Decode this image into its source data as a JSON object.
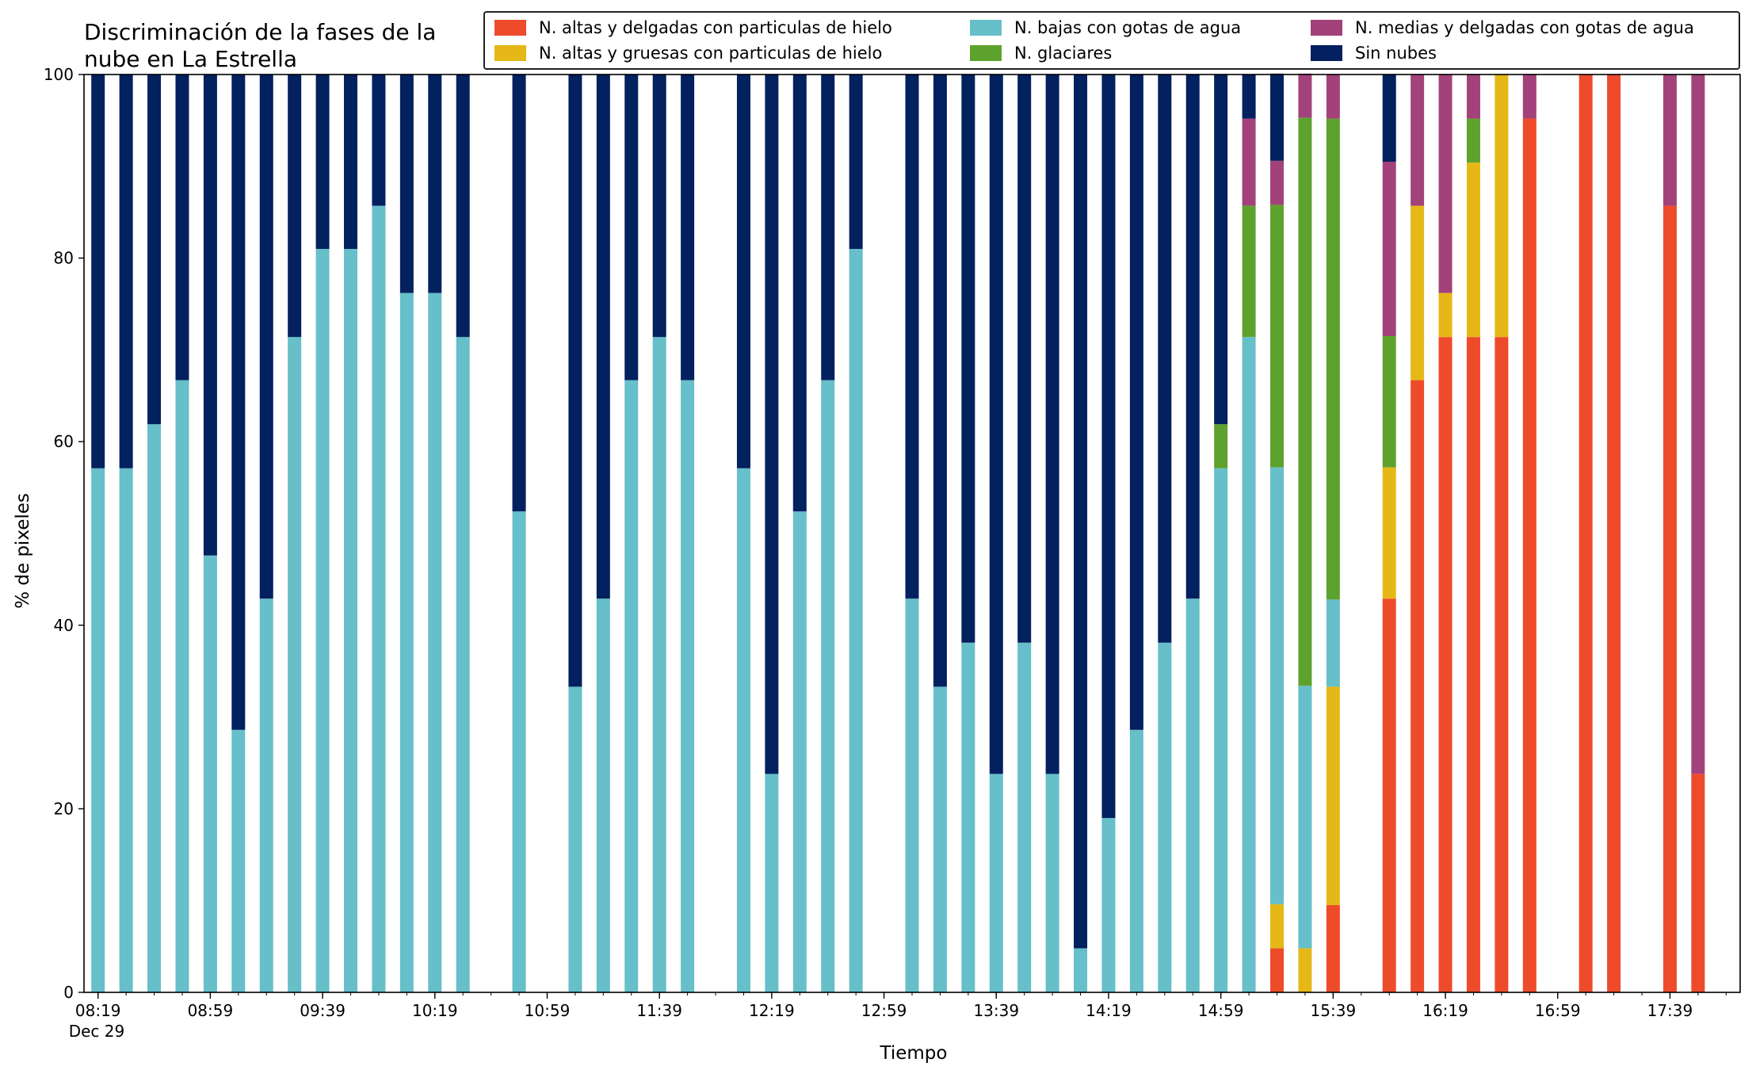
{
  "chart_data": {
    "type": "bar",
    "stacked": true,
    "title": "Discriminación de la fases de la\nnube en La Estrella",
    "xlabel": "Tiempo",
    "ylabel": "% de pixeles",
    "ylim": [
      0,
      100
    ],
    "yticks": [
      0,
      20,
      40,
      60,
      80,
      100
    ],
    "xlim": [
      "08:14",
      "18:04"
    ],
    "x_tick_labels": [
      {
        "t": "08:19",
        "label": "08:19",
        "sublabel": "Dec 29"
      },
      {
        "t": "08:59",
        "label": "08:59"
      },
      {
        "t": "09:39",
        "label": "09:39"
      },
      {
        "t": "10:19",
        "label": "10:19"
      },
      {
        "t": "10:59",
        "label": "10:59"
      },
      {
        "t": "11:39",
        "label": "11:39"
      },
      {
        "t": "12:19",
        "label": "12:19"
      },
      {
        "t": "12:59",
        "label": "12:59"
      },
      {
        "t": "13:39",
        "label": "13:39"
      },
      {
        "t": "14:19",
        "label": "14:19"
      },
      {
        "t": "14:59",
        "label": "14:59"
      },
      {
        "t": "15:39",
        "label": "15:39"
      },
      {
        "t": "16:19",
        "label": "16:19"
      },
      {
        "t": "16:59",
        "label": "16:59"
      },
      {
        "t": "17:39",
        "label": "17:39"
      }
    ],
    "legend": {
      "placement": "top-right",
      "columns": 3
    },
    "x": [
      "08:19",
      "08:29",
      "08:39",
      "08:49",
      "08:59",
      "09:09",
      "09:19",
      "09:29",
      "09:39",
      "09:49",
      "09:59",
      "10:09",
      "10:19",
      "10:29",
      "10:49",
      "11:09",
      "11:19",
      "11:29",
      "11:39",
      "11:49",
      "12:09",
      "12:19",
      "12:29",
      "12:39",
      "12:49",
      "13:09",
      "13:19",
      "13:29",
      "13:39",
      "13:49",
      "13:59",
      "14:09",
      "14:19",
      "14:29",
      "14:39",
      "14:49",
      "14:59",
      "15:09",
      "15:19",
      "15:29",
      "15:39",
      "15:59",
      "16:09",
      "16:19",
      "16:29",
      "16:39",
      "16:49",
      "17:09",
      "17:19",
      "17:39",
      "17:49"
    ],
    "series": [
      {
        "name": "N. altas y delgadas con particulas de hielo",
        "color": "#ee4b2b",
        "values": [
          0,
          0,
          0,
          0,
          0,
          0,
          0,
          0,
          0,
          0,
          0,
          0,
          0,
          0,
          0,
          0,
          0,
          0,
          0,
          0,
          0,
          0,
          0,
          0,
          0,
          0,
          0,
          0,
          0,
          0,
          0,
          0,
          0,
          0,
          0,
          0,
          0,
          0,
          4.8,
          0,
          9.5,
          42.9,
          66.7,
          71.4,
          71.4,
          71.4,
          95.2,
          100,
          100,
          85.7,
          23.8
        ]
      },
      {
        "name": "N. altas y gruesas con particulas de hielo",
        "color": "#e6b817",
        "values": [
          0,
          0,
          0,
          0,
          0,
          0,
          0,
          0,
          0,
          0,
          0,
          0,
          0,
          0,
          0,
          0,
          0,
          0,
          0,
          0,
          0,
          0,
          0,
          0,
          0,
          0,
          0,
          0,
          0,
          0,
          0,
          0,
          0,
          0,
          0,
          0,
          0,
          0,
          4.8,
          4.8,
          23.8,
          14.3,
          19.0,
          4.8,
          19.0,
          28.6,
          0,
          0,
          0,
          0,
          0
        ]
      },
      {
        "name": "N. bajas con gotas de agua",
        "color": "#66bfc9",
        "values": [
          57.1,
          57.1,
          61.9,
          66.7,
          47.6,
          28.6,
          42.9,
          71.4,
          81.0,
          81.0,
          85.7,
          76.2,
          76.2,
          71.4,
          52.4,
          33.3,
          42.9,
          66.7,
          71.4,
          66.7,
          57.1,
          23.8,
          52.4,
          66.7,
          81.0,
          42.9,
          33.3,
          38.1,
          23.8,
          38.1,
          23.8,
          4.8,
          19.0,
          28.6,
          38.1,
          42.9,
          57.1,
          71.4,
          47.6,
          28.6,
          9.5,
          0,
          0,
          0,
          0,
          0,
          0,
          0,
          0,
          0,
          0
        ]
      },
      {
        "name": "N. glaciares",
        "color": "#5ea22e",
        "values": [
          0,
          0,
          0,
          0,
          0,
          0,
          0,
          0,
          0,
          0,
          0,
          0,
          0,
          0,
          0,
          0,
          0,
          0,
          0,
          0,
          0,
          0,
          0,
          0,
          0,
          0,
          0,
          0,
          0,
          0,
          0,
          0,
          0,
          0,
          0,
          0,
          4.8,
          14.3,
          28.6,
          61.9,
          52.4,
          14.3,
          0,
          0,
          4.8,
          0,
          0,
          0,
          0,
          0,
          0
        ]
      },
      {
        "name": "N. medias y delgadas con gotas de agua",
        "color": "#a3427a",
        "values": [
          0,
          0,
          0,
          0,
          0,
          0,
          0,
          0,
          0,
          0,
          0,
          0,
          0,
          0,
          0,
          0,
          0,
          0,
          0,
          0,
          0,
          0,
          0,
          0,
          0,
          0,
          0,
          0,
          0,
          0,
          0,
          0,
          0,
          0,
          0,
          0,
          0,
          9.5,
          4.8,
          4.8,
          4.8,
          19.0,
          14.3,
          23.8,
          4.8,
          0,
          4.8,
          0,
          0,
          14.3,
          76.2
        ]
      },
      {
        "name": "Sin nubes",
        "color": "#03205f",
        "values": [
          42.9,
          42.9,
          38.1,
          33.3,
          52.4,
          71.4,
          57.1,
          28.6,
          19.0,
          19.0,
          14.3,
          23.8,
          23.8,
          28.6,
          47.6,
          66.7,
          57.1,
          33.3,
          28.6,
          33.3,
          42.9,
          76.2,
          47.6,
          33.3,
          19.0,
          57.1,
          66.7,
          61.9,
          76.2,
          61.9,
          76.2,
          95.2,
          81.0,
          71.4,
          61.9,
          57.1,
          38.1,
          4.8,
          9.5,
          0,
          0,
          9.5,
          0,
          0,
          0,
          0,
          0,
          0,
          0,
          0,
          0
        ]
      }
    ],
    "legend_order": [
      0,
      1,
      2,
      3,
      4,
      5
    ]
  }
}
